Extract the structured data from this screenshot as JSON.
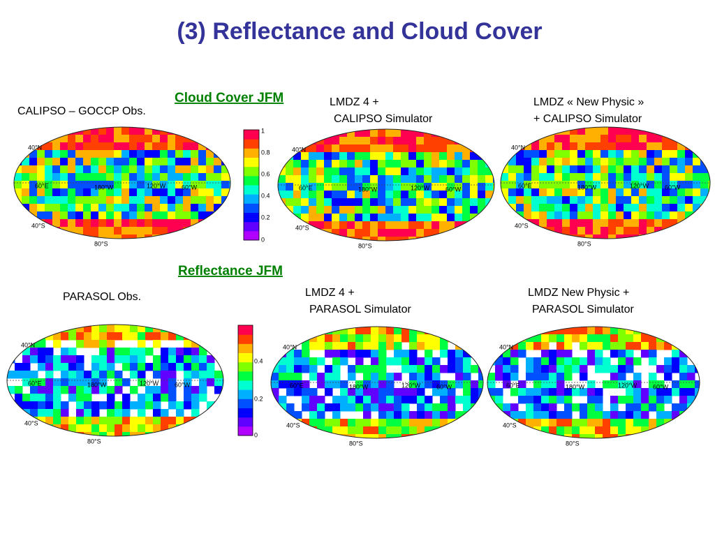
{
  "title": "(3) Reflectance  and  Cloud Cover",
  "sections": [
    {
      "heading": "Cloud Cover JFM",
      "panels": [
        {
          "label_lines": [
            "CALIPSO – GOCCP Obs."
          ],
          "grid_labels": [
            "40°N",
            "60°E",
            "180°W",
            "120°W",
            "60°W",
            "40°S",
            "80°S"
          ]
        },
        {
          "label_lines": [
            "LMDZ 4 +",
            "CALIPSO Simulator"
          ],
          "grid_labels": [
            "40°N",
            "60°E",
            "180°W",
            "120°W",
            "60°W",
            "40°S",
            "80°S"
          ]
        },
        {
          "label_lines": [
            "LMDZ « New Physic »",
            "+ CALIPSO Simulator"
          ],
          "grid_labels": [
            "40°N",
            "60°E",
            "180°W",
            "120°W",
            "60°W",
            "40°S",
            "80°S"
          ]
        }
      ],
      "colorbar_ticks": [
        1,
        0.8,
        0.6,
        0.4,
        0.2,
        0
      ]
    },
    {
      "heading": "Reflectance JFM",
      "panels": [
        {
          "label_lines": [
            "PARASOL Obs."
          ],
          "grid_labels": [
            "40°N",
            "60°E",
            "180°W",
            "120°W",
            "60°W",
            "40°S",
            "80°S"
          ]
        },
        {
          "label_lines": [
            "LMDZ 4 +",
            "PARASOL Simulator"
          ],
          "grid_labels": [
            "40°N",
            "60°E",
            "180°W",
            "120°W",
            "60°W",
            "40°S",
            "80°S"
          ]
        },
        {
          "label_lines": [
            "LMDZ New Physic +",
            "PARASOL Simulator"
          ],
          "grid_labels": [
            "40°N",
            "60°E",
            "180°W",
            "120°W",
            "60°W",
            "40°S",
            "80°S"
          ]
        }
      ],
      "colorbar_ticks": [
        0.4,
        0.2,
        0
      ]
    }
  ]
}
